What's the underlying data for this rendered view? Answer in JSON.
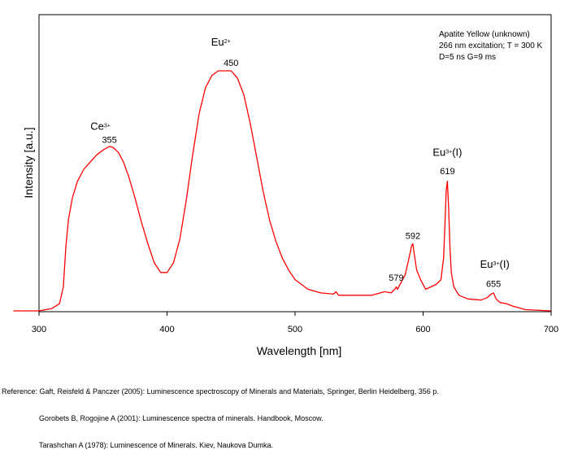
{
  "chart_data": {
    "type": "line",
    "title": "",
    "xlabel": "Wavelength [nm]",
    "ylabel": "Intensity [a.u.]",
    "xlim": [
      300,
      700
    ],
    "ylim": [
      0,
      1.1
    ],
    "xticks": [
      300,
      400,
      500,
      600,
      700
    ],
    "grid": false,
    "legend_lines": [
      "Apatite Yellow (unknown)",
      "266 nm excitation; T = 300 K",
      "D=5 ns G=9 ms"
    ],
    "series": [
      {
        "color": "#ff0000",
        "x": [
          280,
          300,
          310,
          316,
          319,
          321,
          323,
          326,
          330,
          335,
          340,
          345,
          350,
          355,
          358,
          362,
          366,
          370,
          375,
          380,
          385,
          390,
          395,
          400,
          405,
          410,
          415,
          420,
          425,
          430,
          435,
          440,
          445,
          450,
          455,
          460,
          465,
          470,
          475,
          480,
          485,
          490,
          495,
          500,
          510,
          520,
          530,
          532,
          534,
          540,
          550,
          560,
          570,
          575,
          578,
          579,
          580,
          583,
          586,
          589,
          591,
          592,
          593,
          595,
          598,
          602,
          606,
          610,
          614,
          616,
          617,
          618,
          619,
          620,
          621,
          622,
          624,
          628,
          635,
          645,
          650,
          653,
          655,
          657,
          660,
          665,
          670,
          680,
          700
        ],
        "y": [
          0.0,
          0.0,
          0.01,
          0.03,
          0.1,
          0.27,
          0.38,
          0.47,
          0.54,
          0.59,
          0.62,
          0.65,
          0.67,
          0.685,
          0.68,
          0.66,
          0.62,
          0.56,
          0.47,
          0.37,
          0.28,
          0.2,
          0.16,
          0.16,
          0.2,
          0.3,
          0.46,
          0.65,
          0.82,
          0.93,
          0.98,
          1.0,
          1.0,
          1.0,
          0.97,
          0.9,
          0.78,
          0.64,
          0.5,
          0.38,
          0.29,
          0.22,
          0.17,
          0.13,
          0.09,
          0.075,
          0.07,
          0.08,
          0.065,
          0.065,
          0.065,
          0.065,
          0.08,
          0.075,
          0.09,
          0.1,
          0.09,
          0.12,
          0.15,
          0.22,
          0.27,
          0.28,
          0.24,
          0.17,
          0.13,
          0.09,
          0.1,
          0.11,
          0.13,
          0.22,
          0.35,
          0.5,
          0.54,
          0.42,
          0.26,
          0.16,
          0.1,
          0.065,
          0.05,
          0.045,
          0.055,
          0.07,
          0.075,
          0.05,
          0.035,
          0.03,
          0.02,
          0.005,
          0.0
        ]
      }
    ],
    "annotations": [
      {
        "id": "ce-label",
        "base": "Ce",
        "sup": "3+",
        "suffix": "",
        "x": 348,
        "y": 0.755,
        "anchor": "middle"
      },
      {
        "id": "ce-peak",
        "text": "355",
        "x": 355,
        "y": 0.7,
        "anchor": "middle"
      },
      {
        "id": "eu2-label",
        "base": "Eu",
        "sup": "2+",
        "suffix": "",
        "x": 442,
        "y": 1.105,
        "anchor": "middle"
      },
      {
        "id": "eu2-peak",
        "text": "450",
        "x": 450,
        "y": 1.02,
        "anchor": "middle"
      },
      {
        "id": "eu3-label-619",
        "base": "Eu",
        "sup": "3+",
        "suffix": "(I)",
        "x": 619,
        "y": 0.645,
        "anchor": "middle"
      },
      {
        "id": "eu3-peak-619",
        "text": "619",
        "x": 619,
        "y": 0.57,
        "anchor": "middle"
      },
      {
        "id": "eu3-peak-592",
        "text": "592",
        "x": 592,
        "y": 0.3,
        "anchor": "middle"
      },
      {
        "id": "eu3-peak-579",
        "text": "579",
        "x": 579,
        "y": 0.125,
        "anchor": "middle"
      },
      {
        "id": "eu3-label-655",
        "base": "Eu",
        "sup": "3+",
        "suffix": "(I)",
        "x": 656,
        "y": 0.18,
        "anchor": "middle"
      },
      {
        "id": "eu3-peak-655",
        "text": "655",
        "x": 655,
        "y": 0.1,
        "anchor": "middle"
      }
    ]
  },
  "references": [
    "Reference: Gaft, Reisfeld & Panczer (2005): Luminescence spectroscopy of Minerals and Materials, Springer, Berlin Heidelberg, 356 p.",
    "Gorobets B, Rogojine A (2001): Luminescence spectra of minerals. Handbook, Moscow.",
    "Tarashchan A (1978): Luminescence of Minerals. Kiev, Naukova Dumka."
  ]
}
